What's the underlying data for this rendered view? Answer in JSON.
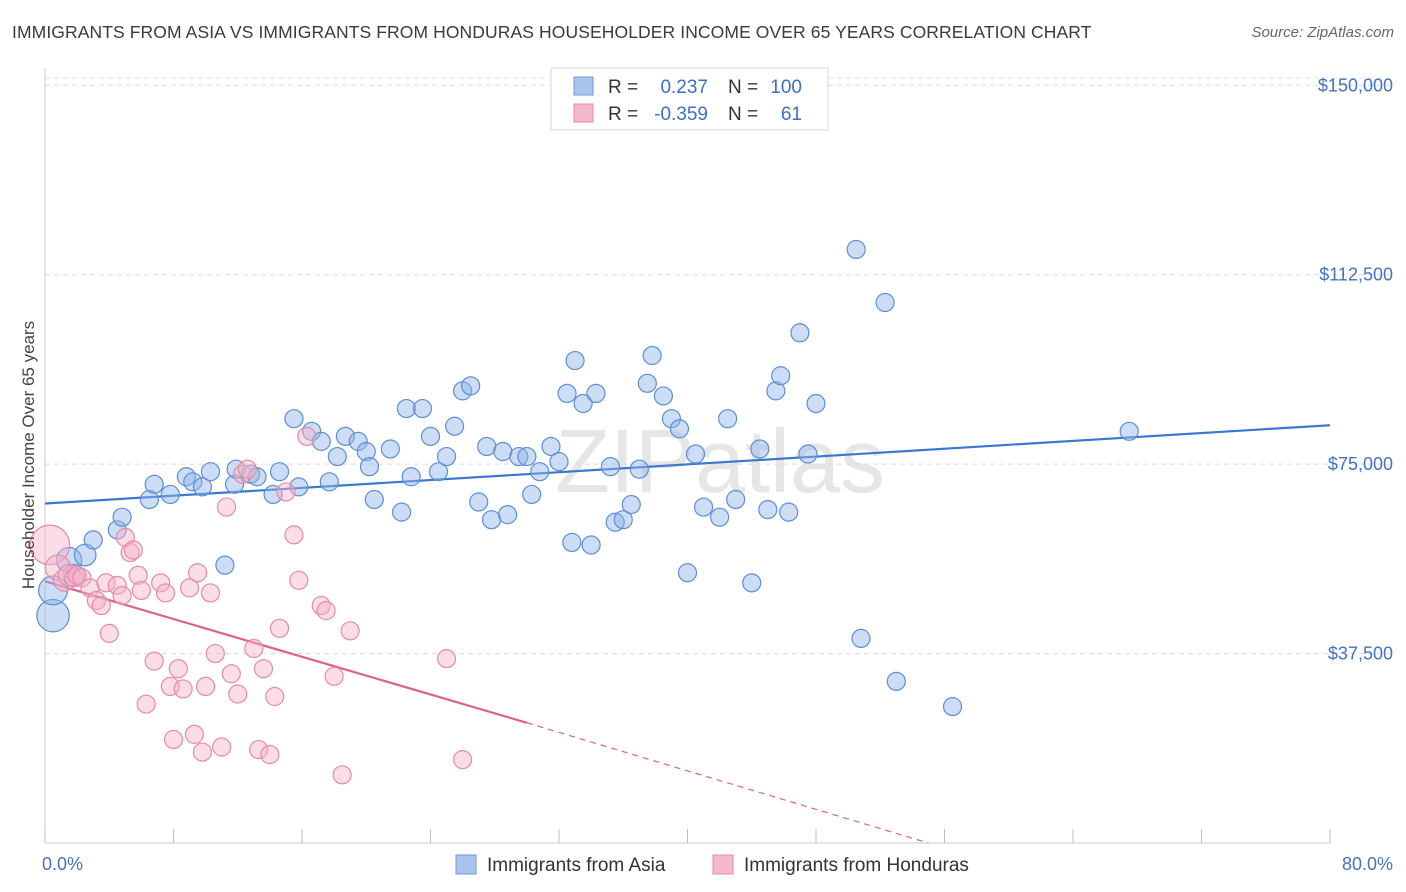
{
  "title": "IMMIGRANTS FROM ASIA VS IMMIGRANTS FROM HONDURAS HOUSEHOLDER INCOME OVER 65 YEARS CORRELATION CHART",
  "source": "Source: ZipAtlas.com",
  "watermark": "ZIPatlas",
  "legend": {
    "rows": [
      {
        "r_label": "R =",
        "r_value": "0.237",
        "n_label": "N =",
        "n_value": "100",
        "color": "#a9c4ee",
        "border": "#6f98d8"
      },
      {
        "r_label": "R =",
        "r_value": "-0.359",
        "n_label": "N =",
        "n_value": "61",
        "color": "#f6b9cb",
        "border": "#e889a6"
      }
    ]
  },
  "chart_data": {
    "type": "scatter",
    "xlabel": "",
    "ylabel": "Householder Income Over 65 years",
    "xlim": [
      0,
      80
    ],
    "ylim": [
      0,
      155000
    ],
    "x_tick_labels": [
      "0.0%",
      "80.0%"
    ],
    "y_ticks": [
      37500,
      75000,
      112500,
      150000
    ],
    "y_tick_labels": [
      "$37,500",
      "$75,000",
      "$112,500",
      "$150,000"
    ],
    "grid": true,
    "legend_position": "top-center",
    "series": [
      {
        "name": "Immigrants from Asia",
        "color": "#8fb3e8",
        "stroke": "#5b8fd6",
        "line_color": "#3b78d0",
        "trend": {
          "x": [
            0,
            80
          ],
          "y": [
            67200,
            82700
          ]
        },
        "points": [
          [
            0.5,
            45000,
            18
          ],
          [
            0.5,
            50000,
            16
          ],
          [
            1.5,
            56000,
            14
          ],
          [
            1.8,
            53000,
            12
          ],
          [
            2.5,
            57000,
            12
          ],
          [
            3,
            60000,
            10
          ],
          [
            4.5,
            62000,
            10
          ],
          [
            4.8,
            64500,
            10
          ],
          [
            6.5,
            68000,
            10
          ],
          [
            6.8,
            71000,
            10
          ],
          [
            7.8,
            69000,
            10
          ],
          [
            8.8,
            72500,
            10
          ],
          [
            9.2,
            71500,
            10
          ],
          [
            9.8,
            70500,
            10
          ],
          [
            10.3,
            73500,
            10
          ],
          [
            11.8,
            71000,
            10
          ],
          [
            11.2,
            55000,
            10
          ],
          [
            11.9,
            74000,
            10
          ],
          [
            12.8,
            73000,
            10
          ],
          [
            13.2,
            72500,
            10
          ],
          [
            14.2,
            69000,
            10
          ],
          [
            14.6,
            73500,
            10
          ],
          [
            15.5,
            84000,
            10
          ],
          [
            15.8,
            70500,
            10
          ],
          [
            16.6,
            81500,
            10
          ],
          [
            17.2,
            79500,
            10
          ],
          [
            17.7,
            71500,
            10
          ],
          [
            18.2,
            76500,
            10
          ],
          [
            18.7,
            80500,
            10
          ],
          [
            19.5,
            79500,
            10
          ],
          [
            20,
            77500,
            10
          ],
          [
            20.2,
            74500,
            10
          ],
          [
            20.5,
            68000,
            10
          ],
          [
            21.5,
            78000,
            10
          ],
          [
            22.2,
            65500,
            10
          ],
          [
            22.5,
            86000,
            10
          ],
          [
            22.8,
            72500,
            10
          ],
          [
            23.5,
            86000,
            10
          ],
          [
            24,
            80500,
            10
          ],
          [
            24.5,
            73500,
            10
          ],
          [
            25,
            76500,
            10
          ],
          [
            25.5,
            82500,
            10
          ],
          [
            26.0,
            89500,
            10
          ],
          [
            26.5,
            90500,
            10
          ],
          [
            27.0,
            67500,
            10
          ],
          [
            27.5,
            78500,
            10
          ],
          [
            27.8,
            64000,
            10
          ],
          [
            28.5,
            77500,
            10
          ],
          [
            28.8,
            65000,
            10
          ],
          [
            29.5,
            76500,
            10
          ],
          [
            30.0,
            76500,
            10
          ],
          [
            30.3,
            69000,
            10
          ],
          [
            30.8,
            73500,
            10
          ],
          [
            31.5,
            78500,
            10
          ],
          [
            32.0,
            75500,
            10
          ],
          [
            32.5,
            89000,
            10
          ],
          [
            32.8,
            59500,
            10
          ],
          [
            33.0,
            95500,
            10
          ],
          [
            33.5,
            87000,
            10
          ],
          [
            34,
            59000,
            10
          ],
          [
            34.3,
            89000,
            10
          ],
          [
            35.2,
            74500,
            10
          ],
          [
            35.5,
            63500,
            10
          ],
          [
            36.0,
            64000,
            10
          ],
          [
            36.5,
            67000,
            10
          ],
          [
            37.0,
            74000,
            10
          ],
          [
            37.5,
            91000,
            10
          ],
          [
            37.8,
            96500,
            10
          ],
          [
            38.5,
            88500,
            10
          ],
          [
            39.0,
            84000,
            10
          ],
          [
            39.5,
            82000,
            10
          ],
          [
            40.0,
            53500,
            10
          ],
          [
            40.5,
            77000,
            10
          ],
          [
            41.0,
            66500,
            10
          ],
          [
            42.0,
            64500,
            10
          ],
          [
            42.5,
            84000,
            10
          ],
          [
            43.0,
            68000,
            10
          ],
          [
            44.0,
            51500,
            10
          ],
          [
            44.5,
            78000,
            10
          ],
          [
            45.0,
            66000,
            10
          ],
          [
            45.5,
            89500,
            10
          ],
          [
            45.8,
            92500,
            10
          ],
          [
            46.3,
            65500,
            10
          ],
          [
            47.0,
            101000,
            10
          ],
          [
            47.5,
            77000,
            10
          ],
          [
            48.0,
            87000,
            10
          ],
          [
            50.5,
            117500,
            10
          ],
          [
            50.8,
            40500,
            10
          ],
          [
            52.3,
            107000,
            10
          ],
          [
            53.0,
            32000,
            10
          ],
          [
            56.5,
            27000,
            10
          ],
          [
            67.5,
            81500,
            10
          ]
        ]
      },
      {
        "name": "Immigrants from Honduras",
        "color": "#f4b3c7",
        "stroke": "#e68aa6",
        "line_color": "#e0608c",
        "trend": {
          "x": [
            0,
            30
          ],
          "y": [
            51800,
            23800
          ]
        },
        "trend_dashed": {
          "x": [
            30,
            55
          ],
          "y": [
            23800,
            0
          ]
        },
        "points": [
          [
            0.3,
            59000,
            22
          ],
          [
            0.8,
            54500,
            14
          ],
          [
            1.2,
            52000,
            12
          ],
          [
            1.5,
            53000,
            12
          ],
          [
            1.8,
            52500,
            10
          ],
          [
            2.0,
            53000,
            10
          ],
          [
            2.3,
            52500,
            10
          ],
          [
            2.8,
            50500,
            10
          ],
          [
            3.2,
            48000,
            10
          ],
          [
            3.5,
            47000,
            10
          ],
          [
            3.8,
            51500,
            10
          ],
          [
            4.0,
            41500,
            10
          ],
          [
            4.5,
            51000,
            10
          ],
          [
            4.8,
            49000,
            10
          ],
          [
            5.0,
            60500,
            10
          ],
          [
            5.3,
            57500,
            10
          ],
          [
            5.5,
            58000,
            10
          ],
          [
            5.8,
            53000,
            10
          ],
          [
            6.0,
            50000,
            10
          ],
          [
            6.3,
            27500,
            10
          ],
          [
            6.8,
            36000,
            10
          ],
          [
            7.2,
            51500,
            10
          ],
          [
            7.5,
            49500,
            10
          ],
          [
            7.8,
            31000,
            10
          ],
          [
            8.0,
            20500,
            10
          ],
          [
            8.3,
            34500,
            10
          ],
          [
            8.6,
            30500,
            10
          ],
          [
            9.0,
            50500,
            10
          ],
          [
            9.3,
            21500,
            10
          ],
          [
            9.5,
            53500,
            10
          ],
          [
            9.8,
            18000,
            10
          ],
          [
            10.0,
            31000,
            10
          ],
          [
            10.3,
            49500,
            10
          ],
          [
            10.6,
            37500,
            10
          ],
          [
            11.0,
            19000,
            10
          ],
          [
            11.3,
            66500,
            10
          ],
          [
            11.6,
            33500,
            10
          ],
          [
            12.0,
            29500,
            10
          ],
          [
            12.3,
            73000,
            10
          ],
          [
            12.6,
            74000,
            10
          ],
          [
            13.0,
            38500,
            10
          ],
          [
            13.3,
            18500,
            10
          ],
          [
            13.6,
            34500,
            10
          ],
          [
            14.0,
            17500,
            10
          ],
          [
            14.3,
            29000,
            10
          ],
          [
            14.6,
            42500,
            10
          ],
          [
            15.0,
            69500,
            10
          ],
          [
            15.5,
            61000,
            10
          ],
          [
            15.8,
            52000,
            10
          ],
          [
            16.3,
            80500,
            10
          ],
          [
            17.2,
            47000,
            10
          ],
          [
            17.5,
            46000,
            10
          ],
          [
            18.0,
            33000,
            10
          ],
          [
            18.5,
            13500,
            10
          ],
          [
            19.0,
            42000,
            10
          ],
          [
            25.0,
            36500,
            10
          ],
          [
            26.0,
            16500,
            10
          ]
        ]
      }
    ]
  }
}
